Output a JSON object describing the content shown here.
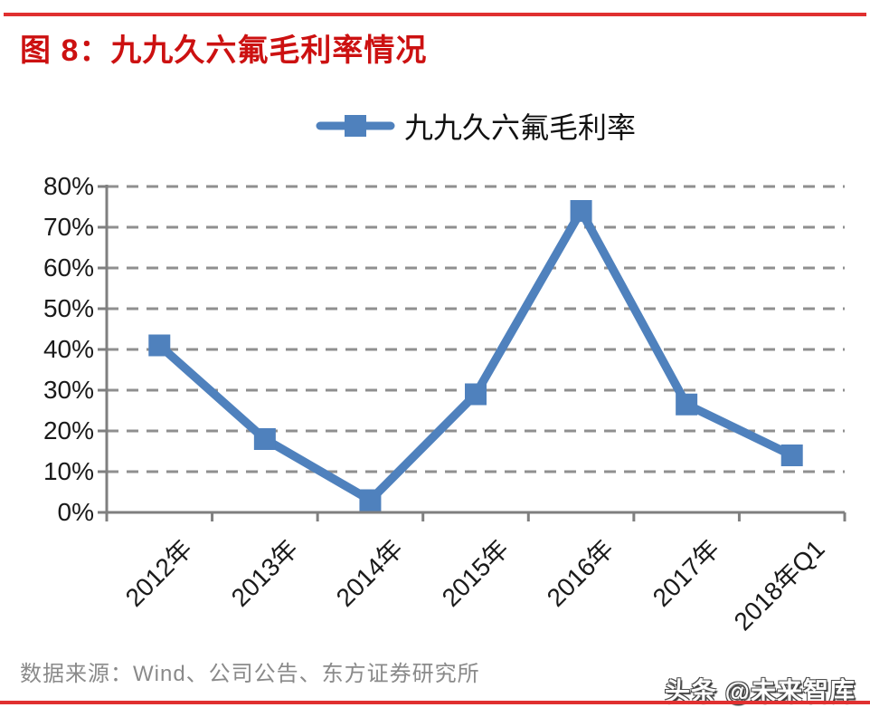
{
  "header": {
    "title": "图 8：九九久六氟毛利率情况"
  },
  "chart_data": {
    "type": "line",
    "title": "图 8：九九久六氟毛利率情况",
    "legend": [
      "九九久六氟毛利率"
    ],
    "legend_position": "top center",
    "categories": [
      "2012年",
      "2013年",
      "2014年",
      "2015年",
      "2016年",
      "2017年",
      "2018年Q1"
    ],
    "series": [
      {
        "name": "九九久六氟毛利率",
        "values": [
          41,
          18,
          3,
          29,
          74,
          26.5,
          14
        ]
      }
    ],
    "unit": "%",
    "ylim": [
      0,
      80
    ],
    "ytick_step": 10,
    "yticks": [
      "0%",
      "10%",
      "20%",
      "30%",
      "40%",
      "50%",
      "60%",
      "70%",
      "80%"
    ],
    "grid": "horizontal dashed",
    "marker": "square",
    "line_color": "#4F81BD"
  },
  "footer": {
    "source": "数据来源：Wind、公司公告、东方证券研究所",
    "watermark": "头条 @未来智库"
  },
  "colors": {
    "title_red": "#CC1111",
    "rule_red": "#E03030",
    "series_blue": "#4F81BD",
    "axis_gray": "#7F7F7F",
    "grid_gray": "#8F8F8F",
    "label_black": "#1A1A1A",
    "source_gray": "#8A8A8A"
  }
}
